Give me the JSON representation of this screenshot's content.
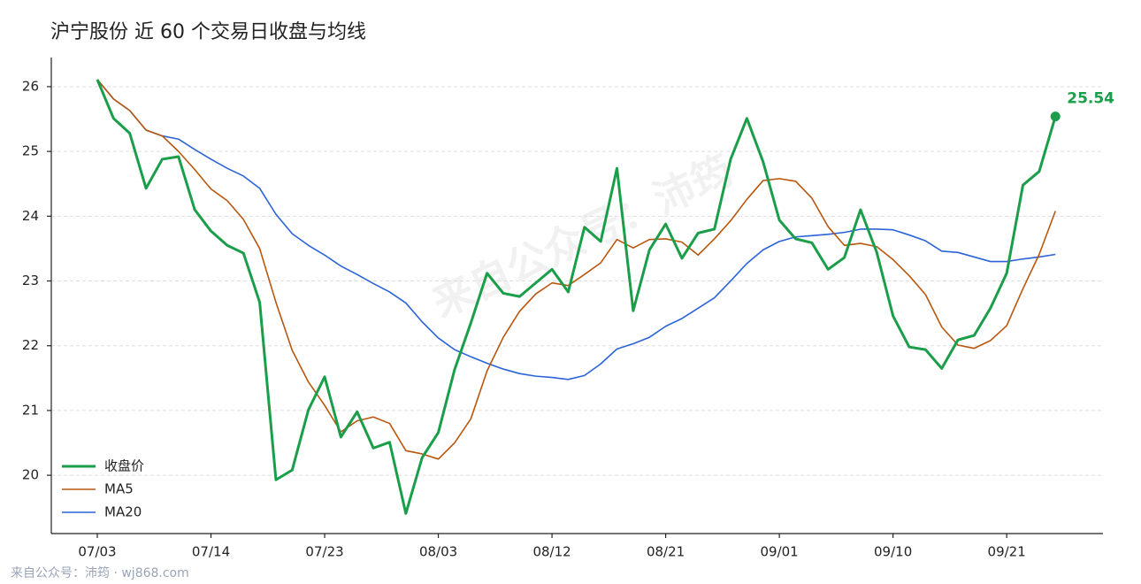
{
  "chart_data": {
    "type": "line",
    "title": "沪宁股份 近 60 个交易日收盘与均线",
    "watermark": "来自公众号：沛筠",
    "footer": "来自公众号：沛筠 · wj868.com",
    "categories": [
      "07/03",
      null,
      null,
      null,
      null,
      null,
      null,
      "07/14",
      null,
      null,
      null,
      null,
      null,
      null,
      "07/23",
      null,
      null,
      null,
      null,
      null,
      null,
      "08/03",
      null,
      null,
      null,
      null,
      null,
      null,
      "08/12",
      null,
      null,
      null,
      null,
      null,
      null,
      "08/21",
      null,
      null,
      null,
      null,
      null,
      null,
      "09/01",
      null,
      null,
      null,
      null,
      null,
      null,
      "09/10",
      null,
      null,
      null,
      null,
      null,
      null,
      "09/21",
      null,
      null,
      null
    ],
    "series": [
      {
        "name": "收盘价",
        "color": "#1a9e4a",
        "width": 3,
        "values": [
          26.11,
          25.51,
          25.28,
          24.43,
          24.88,
          24.92,
          24.1,
          23.77,
          23.55,
          23.43,
          22.67,
          19.93,
          20.08,
          21.01,
          21.52,
          20.59,
          20.98,
          20.42,
          20.51,
          19.41,
          20.27,
          20.66,
          21.63,
          22.35,
          23.12,
          22.81,
          22.76,
          22.97,
          23.18,
          22.83,
          23.83,
          23.61,
          24.74,
          22.54,
          23.48,
          23.88,
          23.35,
          23.74,
          23.8,
          24.88,
          25.51,
          24.84,
          23.94,
          23.65,
          23.59,
          23.18,
          23.36,
          24.1,
          23.44,
          22.46,
          21.98,
          21.94,
          21.65,
          22.09,
          22.16,
          22.58,
          23.12,
          24.48,
          24.69,
          25.54
        ]
      },
      {
        "name": "MA5",
        "color": "#b8570f",
        "width": 1.6,
        "values": [
          26.11,
          25.81,
          25.63,
          25.33,
          25.24,
          25.0,
          24.72,
          24.42,
          24.24,
          23.95,
          23.5,
          22.67,
          21.93,
          21.44,
          21.08,
          20.67,
          20.84,
          20.9,
          20.8,
          20.38,
          20.33,
          20.25,
          20.5,
          20.87,
          21.61,
          22.13,
          22.53,
          22.8,
          22.97,
          22.93,
          23.1,
          23.28,
          23.64,
          23.51,
          23.64,
          23.65,
          23.6,
          23.4,
          23.65,
          23.93,
          24.26,
          24.55,
          24.58,
          24.54,
          24.28,
          23.84,
          23.55,
          23.58,
          23.53,
          23.33,
          23.08,
          22.79,
          22.29,
          22.01,
          21.96,
          22.08,
          22.31,
          22.88,
          23.41,
          24.08
        ]
      },
      {
        "name": "MA20",
        "color": "#2a64d8",
        "width": 1.6,
        "values": [
          26.11,
          25.81,
          25.63,
          25.33,
          25.24,
          25.19,
          25.03,
          24.88,
          24.74,
          24.62,
          24.43,
          24.03,
          23.73,
          23.55,
          23.4,
          23.23,
          23.1,
          22.96,
          22.83,
          22.66,
          22.37,
          22.12,
          21.94,
          21.83,
          21.73,
          21.64,
          21.57,
          21.53,
          21.51,
          21.48,
          21.54,
          21.72,
          21.95,
          22.03,
          22.13,
          22.3,
          22.42,
          22.58,
          22.74,
          23.0,
          23.27,
          23.48,
          23.61,
          23.68,
          23.7,
          23.72,
          23.75,
          23.8,
          23.8,
          23.79,
          23.71,
          23.62,
          23.46,
          23.44,
          23.37,
          23.3,
          23.3,
          23.34,
          23.37,
          23.41
        ]
      }
    ],
    "ylim": [
      19.1,
      26.45
    ],
    "yticks": [
      20,
      21,
      22,
      23,
      24,
      25,
      26
    ],
    "grid": true,
    "legend": "lower left"
  }
}
